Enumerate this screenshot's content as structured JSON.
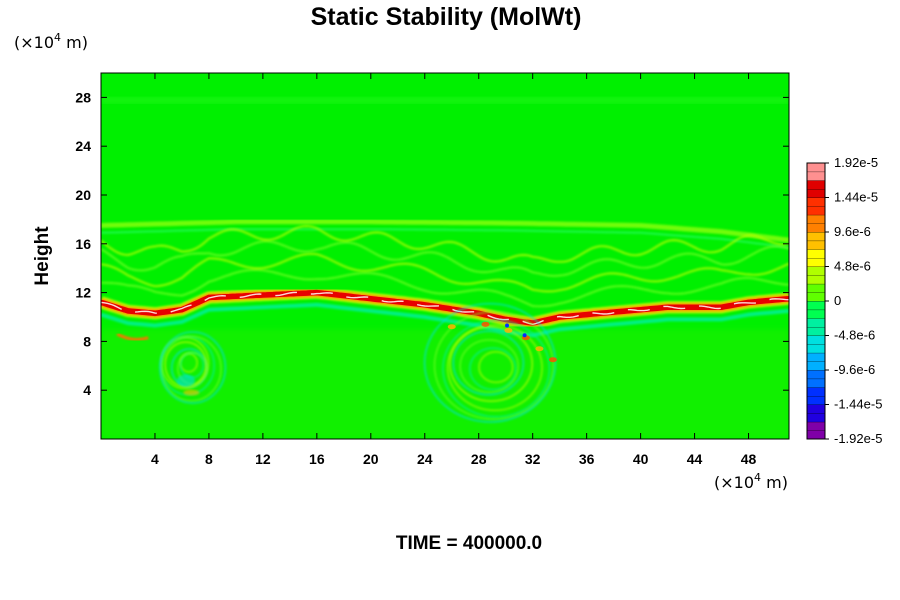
{
  "chart_data": {
    "type": "heatmap",
    "title": "Static Stability (MolWt)",
    "ylabel": "Height",
    "xlabel": "",
    "x_unit": {
      "prefix": "(×10",
      "exp": "4",
      "suffix": " m)"
    },
    "y_unit": {
      "prefix": "(×10",
      "exp": "4",
      "suffix": " m)"
    },
    "xlim": [
      0,
      51
    ],
    "ylim": [
      0,
      30
    ],
    "x_ticks": [
      4,
      8,
      12,
      16,
      20,
      24,
      28,
      32,
      36,
      40,
      44,
      48
    ],
    "x_tick_labels": [
      "4",
      "8",
      "12",
      "16",
      "20",
      "24",
      "28",
      "32",
      "36",
      "40",
      "44",
      "48"
    ],
    "y_ticks": [
      4,
      8,
      12,
      16,
      20,
      24,
      28
    ],
    "y_tick_labels": [
      "4",
      "8",
      "12",
      "16",
      "20",
      "24",
      "28"
    ],
    "colorbar": {
      "range": [
        -1.92e-05,
        1.92e-05
      ],
      "tick_values": [
        1.92e-05,
        1.44e-05,
        9.6e-06,
        4.8e-06,
        0,
        -4.8e-06,
        -9.6e-06,
        -1.44e-05,
        -1.92e-05
      ],
      "tick_labels": [
        "1.92e-5",
        "1.44e-5",
        "9.6e-6",
        "4.8e-6",
        "0",
        "-4.8e-6",
        "-9.6e-6",
        "-1.44e-5",
        "-1.92e-5"
      ],
      "levels": 32,
      "colors": [
        "#7f00a8",
        "#2000e0",
        "#0030ff",
        "#0070ff",
        "#00b0ff",
        "#00e0e0",
        "#00f0a0",
        "#00ff50",
        "#60ff00",
        "#b0ff00",
        "#ffff00",
        "#ffc000",
        "#ff8000",
        "#ff3000",
        "#e00000",
        "#ff9090"
      ]
    },
    "background_value": 0,
    "features": [
      {
        "name": "tropopause-ridge",
        "sign": "positive",
        "y_center_profile": [
          [
            0,
            11.2
          ],
          [
            2,
            10.5
          ],
          [
            4,
            10.3
          ],
          [
            6,
            10.6
          ],
          [
            8,
            11.6
          ],
          [
            12,
            11.8
          ],
          [
            16,
            12.0
          ],
          [
            20,
            11.5
          ],
          [
            24,
            11.0
          ],
          [
            28,
            10.3
          ],
          [
            30,
            9.8
          ],
          [
            32,
            9.5
          ],
          [
            34,
            10.0
          ],
          [
            38,
            10.4
          ],
          [
            42,
            10.8
          ],
          [
            46,
            10.8
          ],
          [
            48,
            11.2
          ],
          [
            51,
            11.5
          ]
        ]
      },
      {
        "name": "upper-band",
        "sign": "weak-positive",
        "y_center_profile": [
          [
            0,
            17.5
          ],
          [
            10,
            17.8
          ],
          [
            20,
            17.8
          ],
          [
            30,
            17.7
          ],
          [
            40,
            17.5
          ],
          [
            46,
            17.0
          ],
          [
            51,
            16.3
          ]
        ]
      },
      {
        "name": "wave-region-left",
        "sign": "mixed",
        "x_range": [
          4,
          9
        ],
        "y_range": [
          3,
          9
        ]
      },
      {
        "name": "wave-region-right",
        "sign": "mixed",
        "x_range": [
          24,
          34
        ],
        "y_range": [
          1,
          11
        ]
      }
    ]
  },
  "footer": {
    "time_label": "TIME = 400000.0"
  }
}
